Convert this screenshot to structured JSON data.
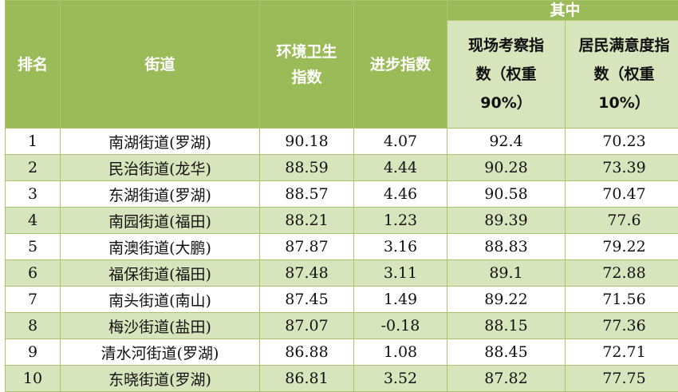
{
  "headers": {
    "rank": "排名",
    "street": "街道",
    "env_index": "环境卫生指数",
    "progress": "进步指数",
    "group": "其中",
    "site": "现场考察指数（权重90%）",
    "residents": "居民满意度指数（权重10%）"
  },
  "rows": [
    [
      "1",
      "南湖街道(罗湖)",
      "90.18",
      "4.07",
      "92.4",
      "70.23"
    ],
    [
      "2",
      "民治街道(龙华)",
      "88.59",
      "4.44",
      "90.28",
      "73.39"
    ],
    [
      "3",
      "东湖街道(罗湖)",
      "88.57",
      "4.46",
      "90.58",
      "70.47"
    ],
    [
      "4",
      "南园街道(福田)",
      "88.21",
      "1.23",
      "89.39",
      "77.6"
    ],
    [
      "5",
      "南澳街道(大鹏)",
      "87.87",
      "3.16",
      "88.83",
      "79.22"
    ],
    [
      "6",
      "福保街道(福田)",
      "87.48",
      "3.11",
      "89.1",
      "72.88"
    ],
    [
      "7",
      "南头街道(南山)",
      "87.45",
      "1.49",
      "89.22",
      "71.56"
    ],
    [
      "8",
      "梅沙街道(盐田)",
      "87.07",
      "-0.18",
      "88.15",
      "77.36"
    ],
    [
      "9",
      "清水河街道(罗湖)",
      "86.88",
      "1.08",
      "88.45",
      "72.71"
    ],
    [
      "10",
      "东晓街道(罗湖)",
      "86.81",
      "3.52",
      "87.82",
      "77.75"
    ]
  ]
}
